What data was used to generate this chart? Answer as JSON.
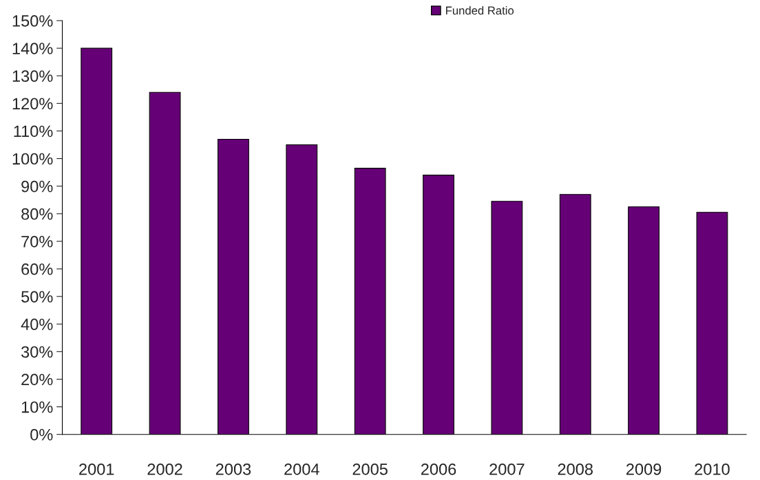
{
  "chart_data": {
    "type": "bar",
    "categories": [
      "2001",
      "2002",
      "2003",
      "2004",
      "2005",
      "2006",
      "2007",
      "2008",
      "2009",
      "2010"
    ],
    "series": [
      {
        "name": "Funded Ratio",
        "color": "#660077",
        "values": [
          140,
          124,
          107,
          105,
          96.5,
          94,
          84.5,
          87,
          82.5,
          80.5
        ]
      }
    ],
    "ylim": [
      0,
      150
    ],
    "yticks": [
      {
        "value": 0,
        "label": "0%"
      },
      {
        "value": 10,
        "label": "10%"
      },
      {
        "value": 20,
        "label": "20%"
      },
      {
        "value": 30,
        "label": "30%"
      },
      {
        "value": 40,
        "label": "40%"
      },
      {
        "value": 50,
        "label": "50%"
      },
      {
        "value": 60,
        "label": "60%"
      },
      {
        "value": 70,
        "label": "70%"
      },
      {
        "value": 80,
        "label": "80%"
      },
      {
        "value": 90,
        "label": "90%"
      },
      {
        "value": 100,
        "label": "100%"
      },
      {
        "value": 110,
        "label": "110%"
      },
      {
        "value": 120,
        "label": "120%"
      },
      {
        "value": 130,
        "label": "130%"
      },
      {
        "value": 140,
        "label": "140%"
      },
      {
        "value": 150,
        "label": "150%"
      }
    ],
    "grid": false,
    "legend": "top"
  }
}
